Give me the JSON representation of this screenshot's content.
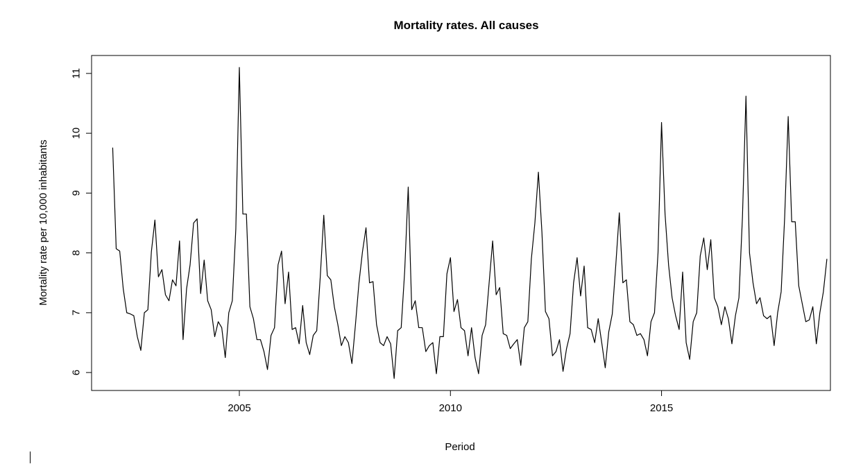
{
  "chart_data": {
    "type": "line",
    "title": "Mortality rates. All causes",
    "xlabel": "Period",
    "ylabel": "Mortality rate per 10,000 inhabitants",
    "xlim": [
      2001.5,
      2019.0
    ],
    "ylim": [
      5.7,
      11.3
    ],
    "xticks": [
      2005,
      2010,
      2015
    ],
    "yticks": [
      6,
      7,
      8,
      9,
      10,
      11
    ],
    "grid": false,
    "line_color": "#000000",
    "series": [
      {
        "start_year": 2002,
        "start_month": 1,
        "values": [
          9.76,
          8.07,
          8.03,
          7.4,
          7.0,
          6.98,
          6.95,
          6.6,
          6.37,
          7.0,
          7.05,
          8.02,
          8.55,
          7.6,
          7.72,
          7.3,
          7.2,
          7.55,
          7.45,
          8.2,
          6.55,
          7.4,
          7.8,
          8.5,
          8.57,
          7.32,
          7.88,
          7.2,
          7.05,
          6.6,
          6.85,
          6.75,
          6.25,
          7.0,
          7.2,
          8.4,
          11.1,
          8.65,
          8.65,
          7.1,
          6.9,
          6.55,
          6.55,
          6.35,
          6.05,
          6.62,
          6.75,
          7.8,
          8.03,
          7.15,
          7.68,
          6.72,
          6.75,
          6.48,
          7.12,
          6.5,
          6.3,
          6.62,
          6.7,
          7.6,
          8.63,
          7.62,
          7.55,
          7.1,
          6.8,
          6.45,
          6.6,
          6.5,
          6.15,
          6.8,
          7.5,
          8.02,
          8.42,
          7.5,
          7.52,
          6.8,
          6.5,
          6.45,
          6.6,
          6.48,
          5.9,
          6.7,
          6.75,
          7.7,
          9.1,
          7.05,
          7.2,
          6.75,
          6.75,
          6.35,
          6.45,
          6.5,
          5.98,
          6.6,
          6.6,
          7.65,
          7.92,
          7.02,
          7.22,
          6.75,
          6.7,
          6.28,
          6.75,
          6.25,
          5.98,
          6.62,
          6.8,
          7.5,
          8.2,
          7.3,
          7.42,
          6.65,
          6.62,
          6.4,
          6.48,
          6.55,
          6.12,
          6.75,
          6.85,
          7.9,
          8.5,
          9.35,
          8.35,
          7.02,
          6.9,
          6.28,
          6.35,
          6.55,
          6.02,
          6.4,
          6.65,
          7.5,
          7.92,
          7.28,
          7.78,
          6.75,
          6.72,
          6.5,
          6.9,
          6.5,
          6.08,
          6.68,
          6.98,
          7.8,
          8.67,
          7.5,
          7.55,
          6.85,
          6.8,
          6.62,
          6.65,
          6.55,
          6.28,
          6.85,
          7.0,
          8.0,
          10.18,
          8.65,
          7.8,
          7.25,
          6.95,
          6.72,
          7.68,
          6.5,
          6.22,
          6.85,
          7.0,
          7.95,
          8.25,
          7.72,
          8.22,
          7.25,
          7.1,
          6.8,
          7.1,
          6.9,
          6.48,
          6.95,
          7.25,
          8.6,
          10.62,
          8.0,
          7.5,
          7.15,
          7.25,
          6.95,
          6.9,
          6.95,
          6.45,
          7.0,
          7.35,
          8.6,
          10.28,
          8.52,
          8.52,
          7.45,
          7.15,
          6.85,
          6.88,
          7.1,
          6.48,
          7.0,
          7.35,
          7.9
        ]
      }
    ]
  }
}
